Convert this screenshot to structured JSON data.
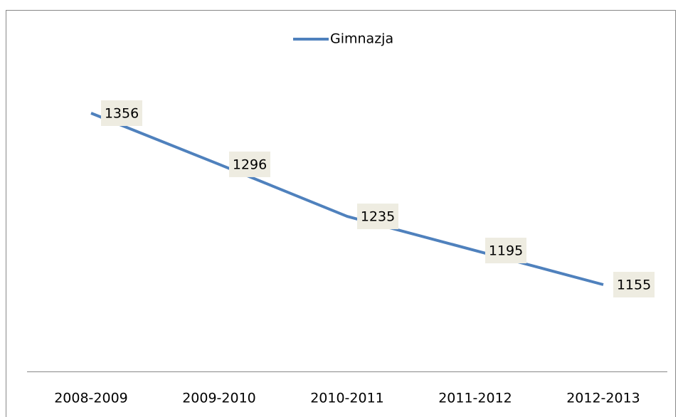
{
  "chart_data": {
    "type": "line",
    "categories": [
      "2008-2009",
      "2009-2010",
      "2010-2011",
      "2011-2012",
      "2012-2013"
    ],
    "series": [
      {
        "name": "Gimnazja",
        "color": "#4f81bd",
        "values": [
          1356,
          1296,
          1235,
          1195,
          1155
        ]
      }
    ],
    "legend": "top",
    "data_labels": true,
    "grid": false
  }
}
